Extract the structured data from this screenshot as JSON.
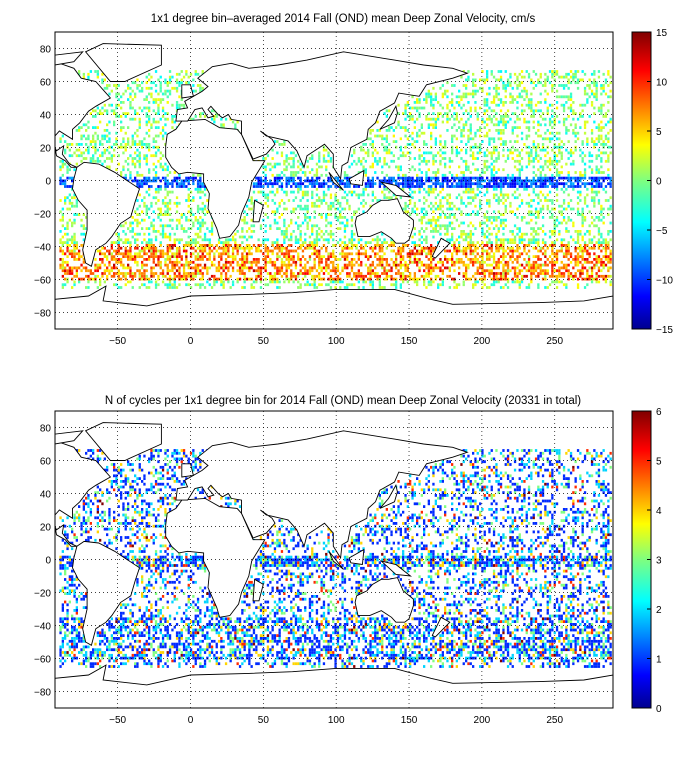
{
  "chart_data": [
    {
      "type": "heatmap",
      "title": "1x1 degree bin–averaged 2014 Fall (OND) mean Deep Zonal Velocity, cm/s",
      "xlabel": "",
      "ylabel": "",
      "xlim": [
        -93,
        290
      ],
      "ylim": [
        -90,
        90
      ],
      "xticks": [
        -50,
        0,
        50,
        100,
        150,
        200,
        250
      ],
      "xtick_labels": [
        "−50",
        "0",
        "50",
        "100",
        "150",
        "200",
        "250"
      ],
      "yticks": [
        80,
        60,
        40,
        20,
        0,
        -20,
        -40,
        -60,
        -80
      ],
      "ytick_labels": [
        "80",
        "60",
        "40",
        "20",
        "0",
        "−20",
        "−40",
        "−60",
        "−80"
      ],
      "grid": "dotted",
      "colorbar": {
        "range": [
          -15,
          15
        ],
        "ticks": [
          15,
          10,
          5,
          0,
          -5,
          -10,
          -15
        ],
        "tick_labels": [
          "15",
          "10",
          "5",
          "0",
          "−5",
          "−10",
          "−15"
        ],
        "colormap": "jet"
      }
    },
    {
      "type": "heatmap",
      "title": "N of cycles per 1x1 degree bin for 2014 Fall (OND) mean Deep Zonal Velocity (20331 in total)",
      "xlabel": "",
      "ylabel": "",
      "xlim": [
        -93,
        290
      ],
      "ylim": [
        -90,
        90
      ],
      "xticks": [
        -50,
        0,
        50,
        100,
        150,
        200,
        250
      ],
      "xtick_labels": [
        "−50",
        "0",
        "50",
        "100",
        "150",
        "200",
        "250"
      ],
      "yticks": [
        80,
        60,
        40,
        20,
        0,
        -20,
        -40,
        -60,
        -80
      ],
      "ytick_labels": [
        "80",
        "60",
        "40",
        "20",
        "0",
        "−20",
        "−40",
        "−60",
        "−80"
      ],
      "grid": "dotted",
      "colorbar": {
        "range": [
          0,
          6
        ],
        "ticks": [
          6,
          5,
          4,
          3,
          2,
          1,
          0
        ],
        "tick_labels": [
          "6",
          "5",
          "4",
          "3",
          "2",
          "1",
          "0"
        ],
        "colormap": "jet"
      }
    }
  ],
  "colors": {
    "land_outline": "#000000",
    "background": "#ffffff"
  }
}
